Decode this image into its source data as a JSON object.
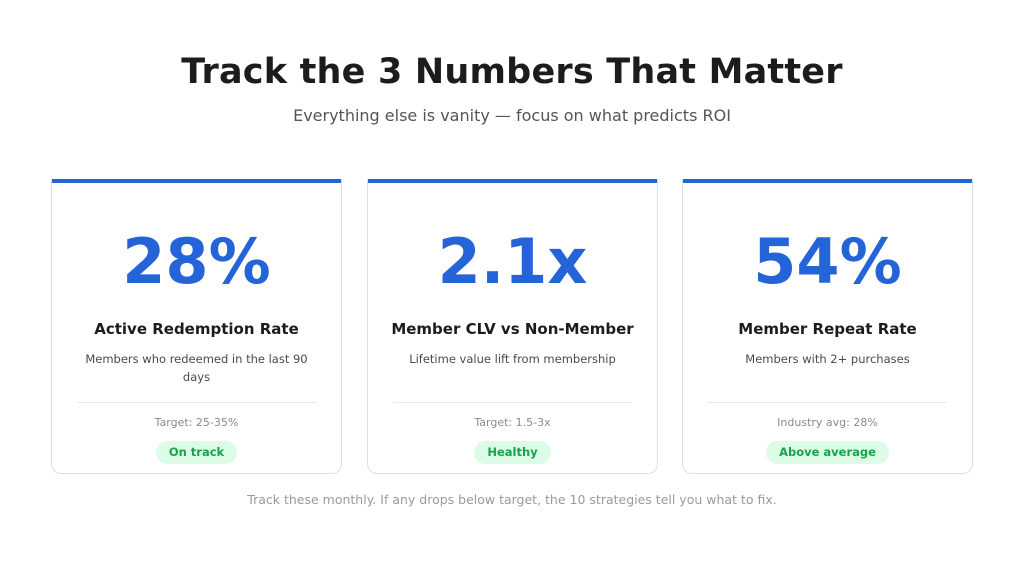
{
  "header": {
    "title": "Track the 3 Numbers That Matter",
    "subtitle": "Everything else is vanity — focus on what predicts ROI"
  },
  "colors": {
    "accent": "#2563d9",
    "badge_bg": "#dcfce7",
    "badge_text": "#16a34a"
  },
  "cards": [
    {
      "metric": "28%",
      "label": "Active Redemption Rate",
      "description": "Members who redeemed in the last 90 days",
      "target": "Target: 25-35%",
      "status": "On track"
    },
    {
      "metric": "2.1x",
      "label": "Member CLV vs Non-Member",
      "description": "Lifetime value lift from membership",
      "target": "Target: 1.5-3x",
      "status": "Healthy"
    },
    {
      "metric": "54%",
      "label": "Member Repeat Rate",
      "description": "Members with 2+ purchases",
      "target": "Industry avg: 28%",
      "status": "Above average"
    }
  ],
  "footer": {
    "note": "Track these monthly. If any drops below target, the 10 strategies tell you what to fix."
  }
}
